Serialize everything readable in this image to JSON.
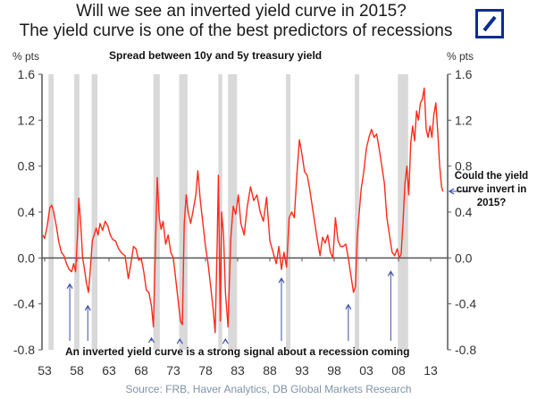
{
  "header": {
    "title_line1": "Will we see an inverted yield curve in 2015?",
    "title_line2": "The yield curve is one of the best predictors of recessions",
    "logo": "deutsche-bank-logo",
    "brand_color": "#0d2d8f"
  },
  "chart_data": {
    "type": "line",
    "title": "Spread between 10y and 5y treasury yield",
    "ylabel_left": "% pts",
    "ylabel_right": "% pts",
    "ylim": [
      -0.8,
      1.6
    ],
    "xlim": [
      1952.7,
      2014.9
    ],
    "yticks": [
      "1.6",
      "1.2",
      "0.8",
      "0.4",
      "0.0",
      "-0.4",
      "-0.8"
    ],
    "ytick_values": [
      1.6,
      1.2,
      0.8,
      0.4,
      0.0,
      -0.4,
      -0.8
    ],
    "xticks": [
      "53",
      "58",
      "63",
      "68",
      "73",
      "78",
      "83",
      "88",
      "93",
      "98",
      "03",
      "08",
      "13"
    ],
    "xtick_values": [
      1953,
      1958,
      1963,
      1968,
      1973,
      1978,
      1983,
      1988,
      1993,
      1998,
      2003,
      2008,
      2013
    ],
    "line_color": "#ff2a1a",
    "recession_color": "#d9d9d9",
    "arrow_color": "#3a4fb0",
    "recessions": [
      [
        1953.6,
        1954.4
      ],
      [
        1957.6,
        1958.4
      ],
      [
        1960.3,
        1961.2
      ],
      [
        1969.9,
        1970.9
      ],
      [
        1973.9,
        1975.2
      ],
      [
        1980.0,
        1980.6
      ],
      [
        1981.5,
        1982.9
      ],
      [
        1990.5,
        1991.2
      ],
      [
        2001.2,
        2001.9
      ],
      [
        2007.9,
        2009.5
      ]
    ],
    "series": [
      {
        "name": "10y-5y spread",
        "x": [
          1952.7,
          1953.0,
          1953.4,
          1953.8,
          1954.1,
          1954.4,
          1954.8,
          1955.2,
          1955.6,
          1956.0,
          1956.4,
          1956.8,
          1957.2,
          1957.5,
          1957.8,
          1958.1,
          1958.3,
          1958.6,
          1958.9,
          1959.2,
          1959.5,
          1959.8,
          1960.1,
          1960.4,
          1960.7,
          1961.0,
          1961.3,
          1961.6,
          1962.0,
          1962.4,
          1962.8,
          1963.2,
          1963.6,
          1964.0,
          1964.5,
          1965.0,
          1965.5,
          1966.0,
          1966.4,
          1966.8,
          1967.2,
          1967.6,
          1968.0,
          1968.4,
          1968.8,
          1969.2,
          1969.6,
          1969.9,
          1970.2,
          1970.5,
          1970.8,
          1971.1,
          1971.4,
          1971.8,
          1972.2,
          1972.6,
          1973.0,
          1973.4,
          1973.8,
          1974.1,
          1974.4,
          1974.7,
          1975.0,
          1975.3,
          1975.7,
          1976.1,
          1976.5,
          1976.8,
          1977.2,
          1977.6,
          1978.0,
          1978.4,
          1978.8,
          1979.2,
          1979.5,
          1979.8,
          1980.0,
          1980.3,
          1980.5,
          1980.8,
          1981.1,
          1981.5,
          1981.9,
          1982.3,
          1982.7,
          1983.1,
          1983.5,
          1984.0,
          1984.5,
          1985.0,
          1985.5,
          1986.0,
          1986.5,
          1987.0,
          1987.5,
          1988.0,
          1988.5,
          1989.0,
          1989.4,
          1989.8,
          1990.2,
          1990.6,
          1991.0,
          1991.4,
          1991.8,
          1992.2,
          1992.6,
          1993.0,
          1993.4,
          1993.8,
          1994.2,
          1994.6,
          1995.0,
          1995.4,
          1995.8,
          1996.2,
          1996.6,
          1997.0,
          1997.4,
          1997.8,
          1998.2,
          1998.6,
          1999.0,
          1999.4,
          1999.8,
          2000.2,
          2000.6,
          2001.0,
          2001.3,
          2001.6,
          2001.9,
          2002.2,
          2002.6,
          2003.0,
          2003.4,
          2003.8,
          2004.2,
          2004.6,
          2005.0,
          2005.4,
          2005.8,
          2006.2,
          2006.6,
          2007.0,
          2007.4,
          2007.8,
          2008.1,
          2008.4,
          2008.7,
          2009.0,
          2009.3,
          2009.6,
          2009.9,
          2010.2,
          2010.5,
          2010.8,
          2011.1,
          2011.4,
          2011.7,
          2012.0,
          2012.3,
          2012.6,
          2012.9,
          2013.2,
          2013.5,
          2013.8,
          2014.1,
          2014.4,
          2014.7,
          2014.9
        ],
        "y": [
          0.2,
          0.17,
          0.28,
          0.44,
          0.46,
          0.4,
          0.28,
          0.14,
          0.05,
          0.02,
          -0.05,
          -0.1,
          -0.12,
          -0.05,
          -0.12,
          0.2,
          0.52,
          0.3,
          0.0,
          -0.1,
          -0.22,
          -0.3,
          -0.1,
          0.15,
          0.2,
          0.26,
          0.2,
          0.3,
          0.24,
          0.32,
          0.28,
          0.2,
          0.16,
          0.15,
          0.08,
          0.04,
          0.02,
          -0.18,
          -0.05,
          0.1,
          0.08,
          -0.02,
          0.0,
          -0.12,
          -0.28,
          -0.3,
          -0.42,
          -0.6,
          0.05,
          0.7,
          0.35,
          0.25,
          0.32,
          0.12,
          0.2,
          0.05,
          0.0,
          -0.2,
          -0.4,
          -0.55,
          -0.58,
          0.3,
          0.55,
          0.4,
          0.3,
          0.42,
          0.55,
          0.76,
          0.5,
          0.3,
          0.1,
          -0.05,
          -0.25,
          -0.45,
          -0.65,
          0.1,
          0.72,
          -0.55,
          0.4,
          0.2,
          -0.3,
          -0.6,
          0.15,
          0.45,
          0.38,
          0.55,
          0.3,
          0.2,
          0.45,
          0.62,
          0.5,
          0.55,
          0.4,
          0.32,
          0.53,
          0.15,
          0.05,
          -0.05,
          0.1,
          -0.1,
          0.05,
          -0.08,
          0.35,
          0.4,
          0.35,
          0.72,
          1.03,
          0.9,
          0.75,
          0.72,
          0.6,
          0.45,
          0.3,
          0.15,
          0.02,
          0.18,
          0.13,
          0.2,
          0.05,
          0.0,
          0.35,
          0.15,
          0.1,
          0.1,
          0.12,
          0.0,
          -0.15,
          -0.3,
          -0.25,
          0.2,
          0.4,
          0.6,
          0.75,
          0.95,
          1.05,
          1.12,
          1.05,
          1.08,
          0.95,
          0.8,
          0.65,
          0.35,
          0.2,
          0.05,
          0.02,
          0.08,
          0.0,
          0.03,
          0.3,
          0.65,
          0.8,
          0.55,
          1.0,
          1.15,
          1.02,
          1.28,
          1.2,
          1.35,
          1.38,
          1.48,
          1.12,
          1.05,
          1.15,
          1.05,
          1.25,
          1.35,
          1.1,
          0.8,
          0.62,
          0.58
        ]
      }
    ],
    "annotations": {
      "bottom": "An inverted yield curve is a strong signal about a recession coming",
      "callout": "Could the yield curve invert in 2015?",
      "inversion_arrows": [
        {
          "year": 1956.9,
          "value": -0.15
        },
        {
          "year": 1959.7,
          "value": -0.34
        },
        {
          "year": 1969.6,
          "value": -0.62
        },
        {
          "year": 1974.0,
          "value": -0.63
        },
        {
          "year": 1981.1,
          "value": -0.63
        },
        {
          "year": 1989.8,
          "value": -0.1
        },
        {
          "year": 2000.2,
          "value": -0.33
        },
        {
          "year": 2006.8,
          "value": -0.04
        }
      ]
    }
  },
  "footer": {
    "source": "Source: FRB, Haver Analytics, DB Global Markets Research"
  }
}
